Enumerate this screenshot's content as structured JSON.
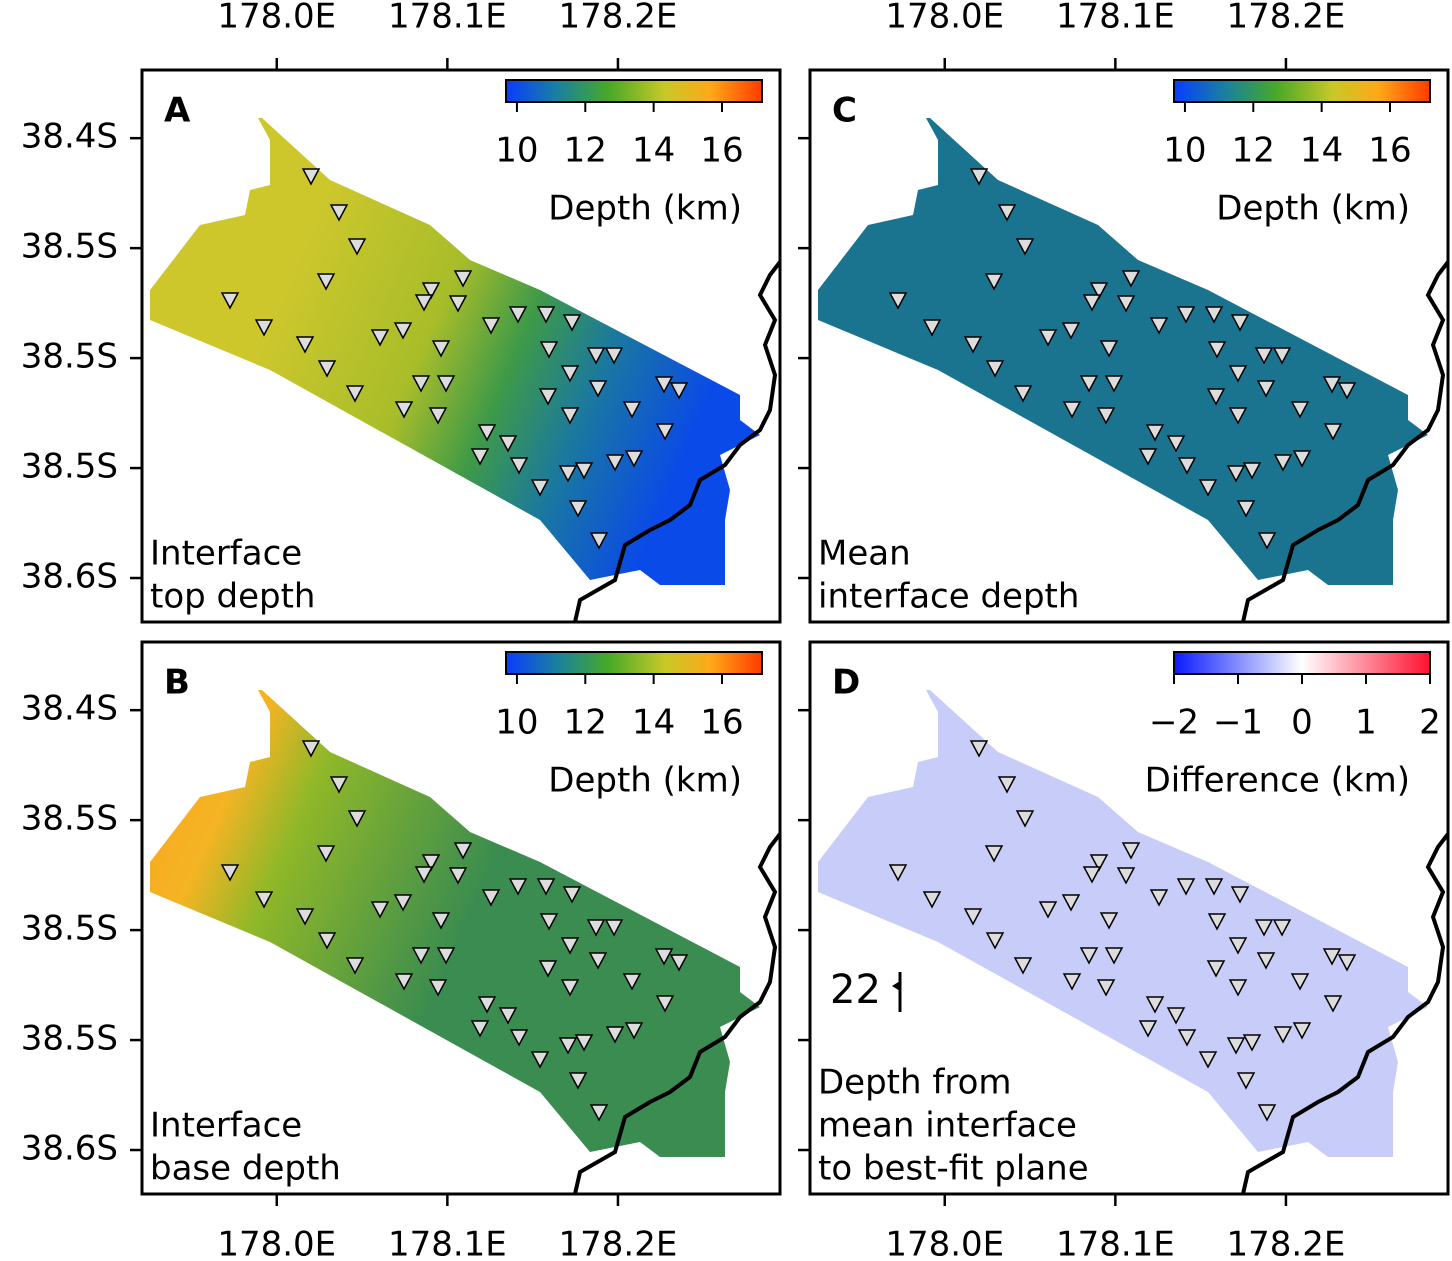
{
  "xaxis": {
    "xlim": [
      177.921,
      178.295
    ],
    "ticks": [
      {
        "value": 178.0,
        "label": "178.0E"
      },
      {
        "value": 178.1,
        "label": "178.1E"
      },
      {
        "value": 178.2,
        "label": "178.2E"
      }
    ]
  },
  "yaxis": {
    "ylim": [
      38.369,
      38.62
    ],
    "ticks": [
      {
        "value": 38.4,
        "label": "38.4S"
      },
      {
        "value": 38.45,
        "label": "38.5S"
      },
      {
        "value": 38.5,
        "label": "38.5S"
      },
      {
        "value": 38.55,
        "label": "38.5S"
      },
      {
        "value": 38.6,
        "label": "38.6S"
      }
    ]
  },
  "panels": [
    {
      "letter": "A",
      "caption": [
        "Interface",
        "top depth"
      ],
      "colorbar": {
        "label": "Depth (km)",
        "clim": [
          9.68,
          17.17
        ],
        "ticks": [
          10,
          12,
          14,
          16
        ]
      }
    },
    {
      "letter": "B",
      "caption": [
        "Interface",
        "base depth"
      ],
      "colorbar": {
        "label": "Depth (km)",
        "clim": [
          9.68,
          17.17
        ],
        "ticks": [
          10,
          12,
          14,
          16
        ]
      }
    },
    {
      "letter": "C",
      "caption": [
        "Mean",
        "interface depth"
      ],
      "colorbar": {
        "label": "Depth (km)",
        "clim": [
          9.68,
          17.17
        ],
        "ticks": [
          10,
          12,
          14,
          16
        ]
      }
    },
    {
      "letter": "D",
      "caption": [
        "Depth from",
        "mean interface",
        "to best-fit plane"
      ],
      "colorbar": {
        "label": "Difference (km)",
        "clim": [
          -2,
          2
        ],
        "ticks": [
          {
            "value": -2,
            "label": "−2"
          },
          {
            "value": -1,
            "label": "−1"
          },
          0,
          1,
          2
        ]
      },
      "annotation": "22"
    }
  ]
}
